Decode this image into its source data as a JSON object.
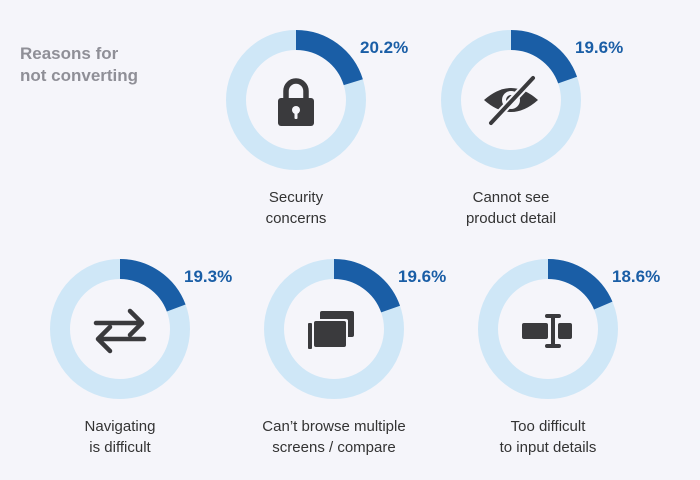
{
  "title": {
    "line1": "Reasons for",
    "line2": "not converting"
  },
  "colors": {
    "track": "#cfe7f7",
    "value": "#1a5ea6",
    "icon": "#3a3a3d",
    "label": "#333333",
    "heading": "#8f8f97"
  },
  "chart_data": {
    "type": "pie",
    "series": [
      {
        "label_line1": "Security",
        "label_line2": "concerns",
        "value": 20.2,
        "display": "20.2%",
        "icon": "lock-icon"
      },
      {
        "label_line1": "Cannot see",
        "label_line2": "product detail",
        "value": 19.6,
        "display": "19.6%",
        "icon": "eye-slash-icon"
      },
      {
        "label_line1": "Navigating",
        "label_line2": "is difficult",
        "value": 19.3,
        "display": "19.3%",
        "icon": "swap-arrows-icon"
      },
      {
        "label_line1": "Can’t browse multiple",
        "label_line2": "screens / compare",
        "value": 19.6,
        "display": "19.6%",
        "icon": "multiple-screens-icon"
      },
      {
        "label_line1": "Too difficult",
        "label_line2": "to input details",
        "value": 18.6,
        "display": "18.6%",
        "icon": "text-input-icon"
      }
    ]
  }
}
